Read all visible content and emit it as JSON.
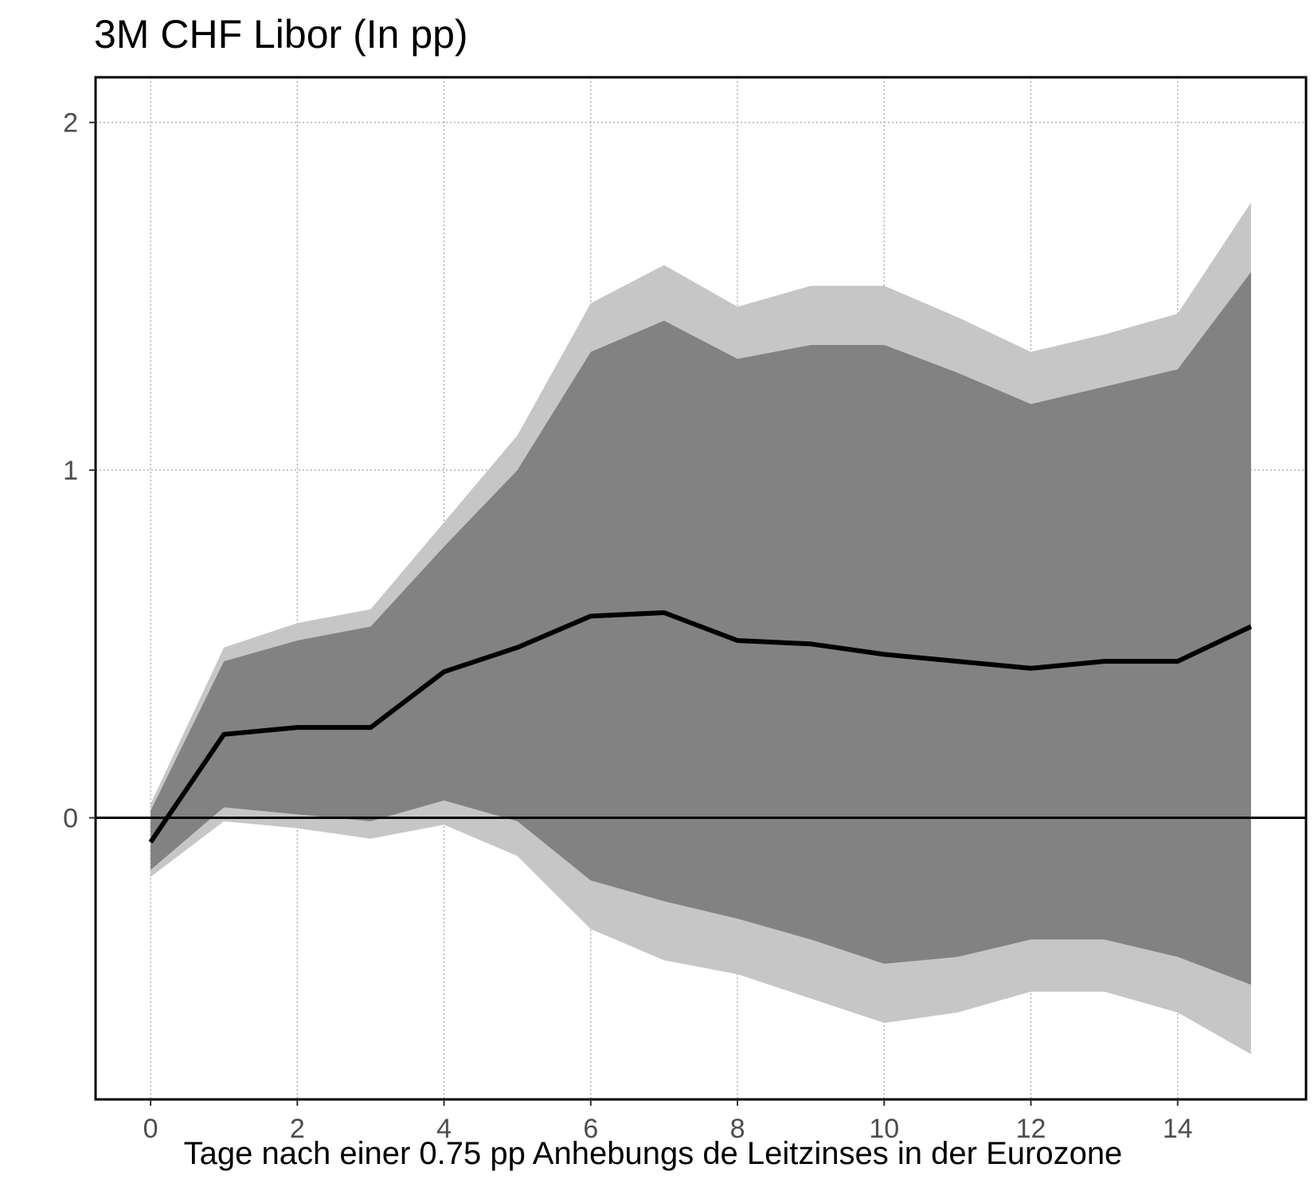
{
  "chart_data": {
    "type": "area",
    "title": "3M CHF Libor (In pp)",
    "xlabel": "Tage nach einer 0.75 pp Anhebungs de Leitzinses in der Eurozone",
    "ylabel": "",
    "x": [
      0,
      1,
      2,
      3,
      4,
      5,
      6,
      7,
      8,
      9,
      10,
      11,
      12,
      13,
      14,
      15
    ],
    "xticks": [
      0,
      2,
      4,
      6,
      8,
      10,
      12,
      14
    ],
    "yticks": [
      0,
      1,
      2
    ],
    "xlim": [
      -0.75,
      15.75
    ],
    "ylim": [
      -0.81,
      2.13
    ],
    "grid": true,
    "reference_line_y": 0,
    "series": [
      {
        "role": "outer-upper",
        "values": [
          0.04,
          0.49,
          0.56,
          0.6,
          0.85,
          1.1,
          1.48,
          1.59,
          1.47,
          1.53,
          1.53,
          1.44,
          1.34,
          1.39,
          1.45,
          1.77
        ]
      },
      {
        "role": "inner-upper",
        "values": [
          0.02,
          0.45,
          0.51,
          0.55,
          0.78,
          1.0,
          1.34,
          1.43,
          1.32,
          1.36,
          1.36,
          1.28,
          1.19,
          1.24,
          1.29,
          1.57
        ]
      },
      {
        "role": "median",
        "values": [
          -0.07,
          0.24,
          0.26,
          0.26,
          0.42,
          0.49,
          0.58,
          0.59,
          0.51,
          0.5,
          0.47,
          0.45,
          0.43,
          0.45,
          0.45,
          0.55
        ]
      },
      {
        "role": "inner-lower",
        "values": [
          -0.15,
          0.03,
          0.01,
          -0.01,
          0.05,
          -0.01,
          -0.18,
          -0.24,
          -0.29,
          -0.35,
          -0.42,
          -0.4,
          -0.35,
          -0.35,
          -0.4,
          -0.48
        ]
      },
      {
        "role": "outer-lower",
        "values": [
          -0.17,
          -0.01,
          -0.03,
          -0.06,
          -0.02,
          -0.11,
          -0.32,
          -0.41,
          -0.45,
          -0.52,
          -0.59,
          -0.56,
          -0.5,
          -0.5,
          -0.56,
          -0.68
        ]
      }
    ],
    "colors": {
      "outer_band": "#c6c6c6",
      "inner_band": "#828282",
      "line": "#000000",
      "grid": "#a0a0a0",
      "axis_text": "#4d4d4d"
    }
  }
}
